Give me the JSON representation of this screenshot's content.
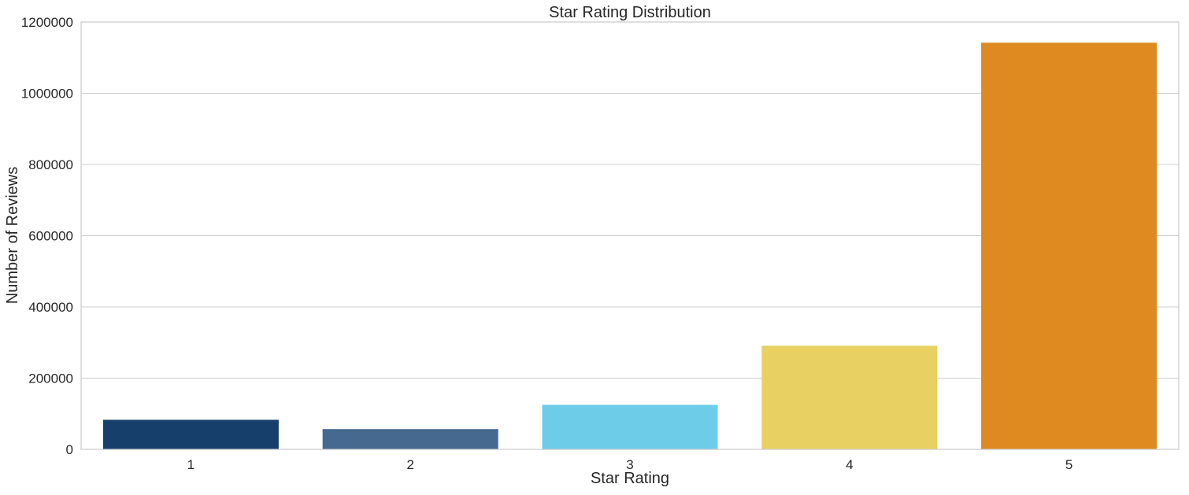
{
  "chart_data": {
    "type": "bar",
    "title": "Star Rating Distribution",
    "xlabel": "Star Rating",
    "ylabel": "Number of Reviews",
    "categories": [
      "1",
      "2",
      "3",
      "4",
      "5"
    ],
    "values": [
      83000,
      57000,
      125000,
      291000,
      1142000
    ],
    "colors": [
      "#173f6b",
      "#46698f",
      "#6dcde9",
      "#e8d062",
      "#de8a20"
    ],
    "ylim": [
      0,
      1200000
    ],
    "yticks": [
      0,
      200000,
      400000,
      600000,
      800000,
      1000000,
      1200000
    ],
    "ytick_labels": [
      "0",
      "200000",
      "400000",
      "600000",
      "800000",
      "1000000",
      "1200000"
    ],
    "grid": "horizontal",
    "legend": "none"
  }
}
